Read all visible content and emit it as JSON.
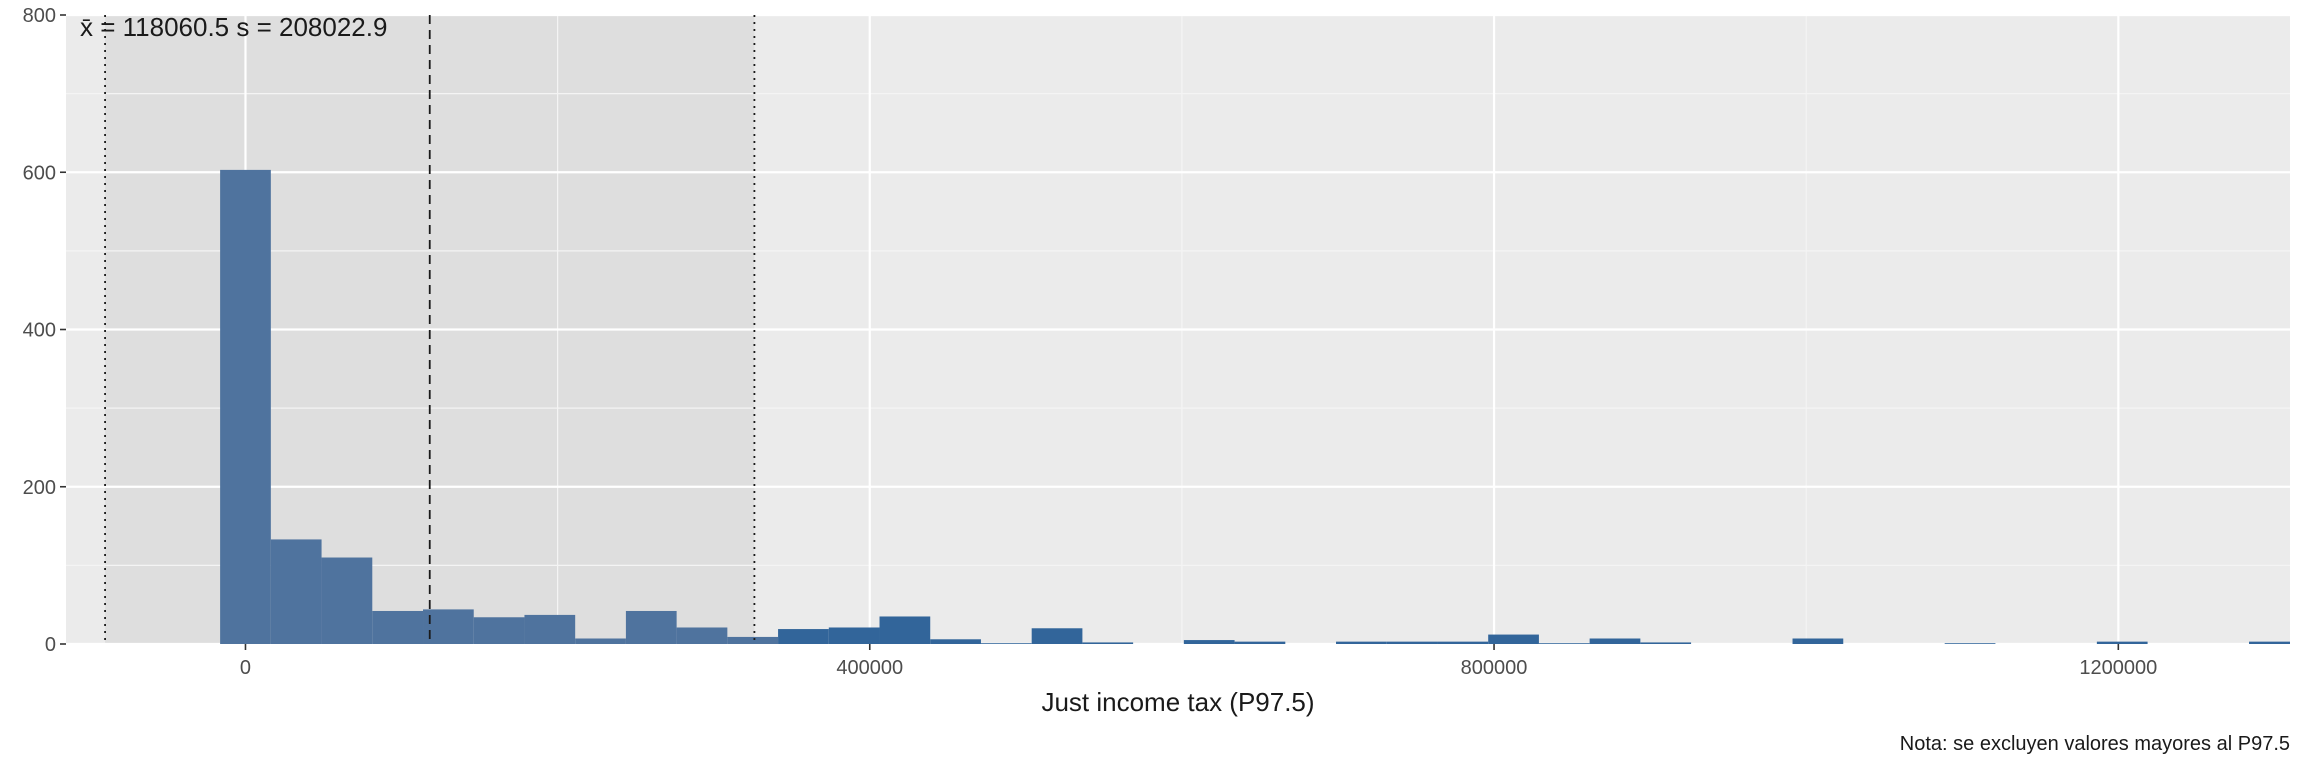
{
  "chart_data": {
    "type": "bar",
    "subtype": "histogram",
    "xlabel": "Just income tax (P97.5)",
    "ylabel": "",
    "caption": "Nota: se excluyen valores mayores al P97.5",
    "annotation": {
      "mean_label": "x̄ = 118060.5",
      "sd_label": "s = 208022.9"
    },
    "mean": 118060.5,
    "sd": 208022.9,
    "xlim": [
      -115000,
      1310000
    ],
    "ylim": [
      0,
      800
    ],
    "xticks": [
      0,
      400000,
      800000,
      1200000
    ],
    "xtick_labels": [
      "0",
      "400000",
      "800000",
      "1200000"
    ],
    "yticks": [
      0,
      200,
      400,
      600,
      800
    ],
    "ytick_labels": [
      "0",
      "200",
      "400",
      "600",
      "800"
    ],
    "bin_width": 32500,
    "bins": [
      {
        "x0": -16250,
        "x1": 16250,
        "count": 603
      },
      {
        "x0": 16250,
        "x1": 48750,
        "count": 133
      },
      {
        "x0": 48750,
        "x1": 81250,
        "count": 110
      },
      {
        "x0": 81250,
        "x1": 113750,
        "count": 42
      },
      {
        "x0": 113750,
        "x1": 146250,
        "count": 44
      },
      {
        "x0": 146250,
        "x1": 178750,
        "count": 34
      },
      {
        "x0": 178750,
        "x1": 211250,
        "count": 37
      },
      {
        "x0": 211250,
        "x1": 243750,
        "count": 7
      },
      {
        "x0": 243750,
        "x1": 276250,
        "count": 42
      },
      {
        "x0": 276250,
        "x1": 308750,
        "count": 21
      },
      {
        "x0": 308750,
        "x1": 341250,
        "count": 9
      },
      {
        "x0": 341250,
        "x1": 373750,
        "count": 19
      },
      {
        "x0": 373750,
        "x1": 406250,
        "count": 21
      },
      {
        "x0": 406250,
        "x1": 438750,
        "count": 35
      },
      {
        "x0": 438750,
        "x1": 471250,
        "count": 6
      },
      {
        "x0": 471250,
        "x1": 503750,
        "count": 1
      },
      {
        "x0": 503750,
        "x1": 536250,
        "count": 20
      },
      {
        "x0": 536250,
        "x1": 568750,
        "count": 2
      },
      {
        "x0": 601250,
        "x1": 633750,
        "count": 5
      },
      {
        "x0": 633750,
        "x1": 666250,
        "count": 3
      },
      {
        "x0": 698750,
        "x1": 731250,
        "count": 3
      },
      {
        "x0": 731250,
        "x1": 763750,
        "count": 3
      },
      {
        "x0": 763750,
        "x1": 796250,
        "count": 3
      },
      {
        "x0": 796250,
        "x1": 828750,
        "count": 12
      },
      {
        "x0": 828750,
        "x1": 861250,
        "count": 1
      },
      {
        "x0": 861250,
        "x1": 893750,
        "count": 7
      },
      {
        "x0": 893750,
        "x1": 926250,
        "count": 2
      },
      {
        "x0": 991250,
        "x1": 1023750,
        "count": 7
      },
      {
        "x0": 1088750,
        "x1": 1121250,
        "count": 1
      },
      {
        "x0": 1186250,
        "x1": 1218750,
        "count": 3
      },
      {
        "x0": 1283750,
        "x1": 1316250,
        "count": 3
      }
    ],
    "grid": true,
    "colors": {
      "panel_background": "#ebebeb",
      "sd_band": "#dedede",
      "grid_major": "#ffffff",
      "grid_minor": "#f4f4f4",
      "bar_inside_band": "#4f739e",
      "bar_outside_band": "#32659a",
      "reference_line": "#1a1a1a",
      "tick_text": "#4d4d4d"
    }
  }
}
